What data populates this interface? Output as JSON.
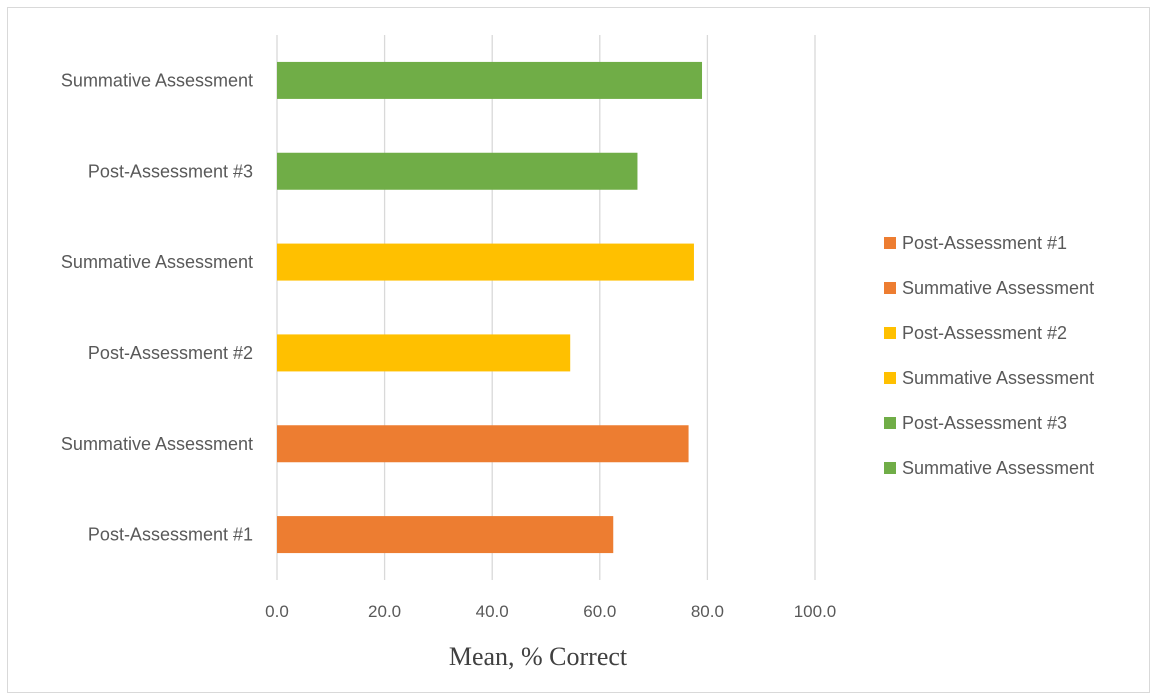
{
  "chart_data": {
    "type": "bar",
    "orientation": "horizontal",
    "categories": [
      "Post-Assessment #1",
      "Summative Assessment",
      "Post-Assessment #2",
      "Summative Assessment",
      "Post-Assessment #3",
      "Summative Assessment"
    ],
    "values": [
      62.5,
      76.5,
      54.5,
      77.5,
      67.0,
      79.0
    ],
    "bar_colors": [
      "#ED7D31",
      "#ED7D31",
      "#FFC000",
      "#FFC000",
      "#70AD47",
      "#70AD47"
    ],
    "xlabel": "Mean, % Correct",
    "xlim": [
      0,
      100
    ],
    "xticks": [
      "0.0",
      "20.0",
      "40.0",
      "60.0",
      "80.0",
      "100.0"
    ],
    "grid": true,
    "legend_position": "right",
    "legend": [
      {
        "label": "Post-Assessment #1",
        "color": "#ED7D31"
      },
      {
        "label": "Summative Assessment",
        "color": "#ED7D31"
      },
      {
        "label": "Post-Assessment #2",
        "color": "#FFC000"
      },
      {
        "label": "Summative Assessment",
        "color": "#FFC000"
      },
      {
        "label": "Post-Assessment #3",
        "color": "#70AD47"
      },
      {
        "label": "Summative Assessment",
        "color": "#70AD47"
      }
    ]
  }
}
